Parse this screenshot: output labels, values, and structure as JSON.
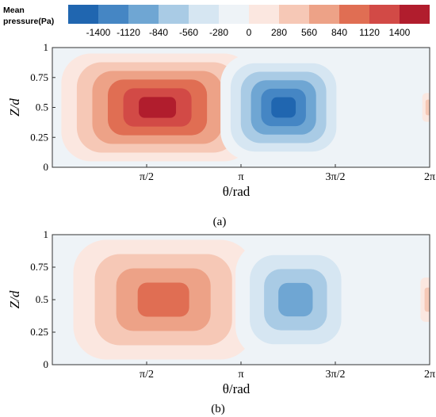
{
  "legend": {
    "title_line1": "Mean",
    "title_line2": "pressure(Pa)",
    "colors": [
      "#2066b0",
      "#4586c4",
      "#6fa6d3",
      "#a9cbe5",
      "#d6e6f2",
      "#eef3f7",
      "#fbe7e0",
      "#f6c8b6",
      "#eda287",
      "#e06e53",
      "#d24a46",
      "#b11d2d"
    ],
    "ticks": [
      "-1400",
      "-1120",
      "-840",
      "-560",
      "-280",
      "0",
      "280",
      "560",
      "840",
      "1120",
      "1400"
    ]
  },
  "chart_data": [
    {
      "type": "heatmap",
      "panel": "(a)",
      "xlabel": "θ/rad",
      "ylabel": "Z/d",
      "x_ticks": [
        "π/2",
        "π",
        "3π/2",
        "2π"
      ],
      "x_tick_values": [
        1.5708,
        3.1416,
        4.7124,
        6.2832
      ],
      "y_ticks": [
        "0",
        "0.25",
        "0.5",
        "0.75",
        "1"
      ],
      "y_tick_values": [
        0,
        0.25,
        0.5,
        0.75,
        1
      ],
      "xlim": [
        0,
        6.2832
      ],
      "ylim": [
        0,
        1
      ],
      "regions": [
        {
          "sign": "positive",
          "theta_center": 1.75,
          "z_center": 0.5,
          "peak_pa": 1400,
          "theta_half_width": 1.6,
          "z_half_width": 0.45
        },
        {
          "sign": "negative",
          "theta_center": 3.85,
          "z_center": 0.5,
          "peak_pa": -1400,
          "theta_half_width": 1.05,
          "z_half_width": 0.44
        },
        {
          "sign": "positive",
          "theta_center": 6.28,
          "z_center": 0.5,
          "peak_pa": 280,
          "theta_half_width": 0.12,
          "z_half_width": 0.12
        }
      ]
    },
    {
      "type": "heatmap",
      "panel": "(b)",
      "xlabel": "θ/rad",
      "ylabel": "Z/d",
      "x_ticks": [
        "π/2",
        "π",
        "3π/2",
        "2π"
      ],
      "x_tick_values": [
        1.5708,
        3.1416,
        4.7124,
        6.2832
      ],
      "y_ticks": [
        "0",
        "0.25",
        "0.5",
        "0.75",
        "1"
      ],
      "y_tick_values": [
        0,
        0.25,
        0.5,
        0.75,
        1
      ],
      "xlim": [
        0,
        6.2832
      ],
      "ylim": [
        0,
        1
      ],
      "regions": [
        {
          "sign": "positive",
          "theta_center": 1.85,
          "z_center": 0.5,
          "peak_pa": 840,
          "theta_half_width": 1.5,
          "z_half_width": 0.46
        },
        {
          "sign": "negative",
          "theta_center": 4.05,
          "z_center": 0.5,
          "peak_pa": -840,
          "theta_half_width": 1.0,
          "z_half_width": 0.45
        },
        {
          "sign": "positive",
          "theta_center": 6.28,
          "z_center": 0.5,
          "peak_pa": 280,
          "theta_half_width": 0.15,
          "z_half_width": 0.17
        }
      ]
    }
  ]
}
